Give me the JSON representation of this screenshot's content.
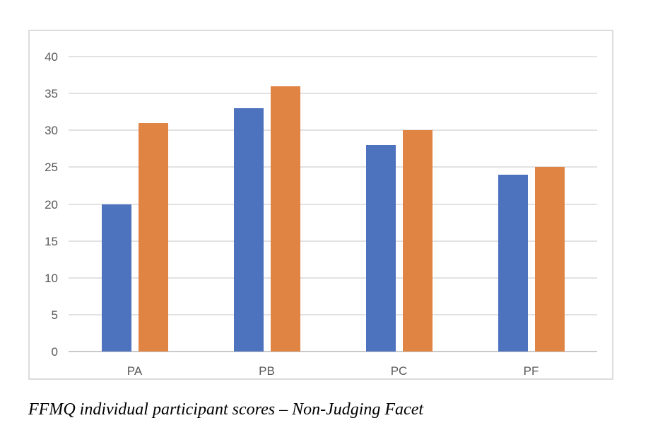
{
  "figure": {
    "caption": "FFMQ individual participant scores – Non-Judging Facet"
  },
  "chart_data": {
    "type": "bar",
    "title": "",
    "xlabel": "",
    "ylabel": "",
    "categories": [
      "PA",
      "PB",
      "PC",
      "PF"
    ],
    "series": [
      {
        "name": "blue-series",
        "color": "#4e73be",
        "values": [
          20,
          33,
          28,
          24
        ]
      },
      {
        "name": "orange-series",
        "color": "#e08444",
        "values": [
          31,
          36,
          30,
          25
        ]
      }
    ],
    "ylim": [
      0,
      40
    ],
    "ytick_step": 5,
    "ytick_labels": [
      "0",
      "5",
      "10",
      "15",
      "20",
      "25",
      "30",
      "35",
      "40"
    ],
    "grid": "horizontal",
    "legend": "none",
    "gridline_color": "#e2e2e2",
    "axis_line_color": "#c9c9c9",
    "tick_label_color": "#595959",
    "frame_border_color": "#dcdcdc",
    "background_color": "#ffffff"
  }
}
